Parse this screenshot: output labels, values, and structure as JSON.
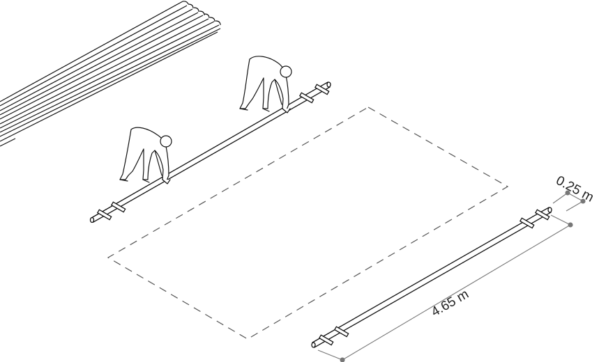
{
  "dimensions": {
    "length_label": "4.65 m",
    "width_label": "0.25 m"
  },
  "colors": {
    "stroke": "#111111",
    "dimension_line": "#777777",
    "dashed_outline": "#555555"
  },
  "elements": {
    "stacked_poles": "pole-stack",
    "workers": [
      "worker-figure",
      "worker-figure"
    ],
    "icons": [
      "person-icon"
    ]
  }
}
